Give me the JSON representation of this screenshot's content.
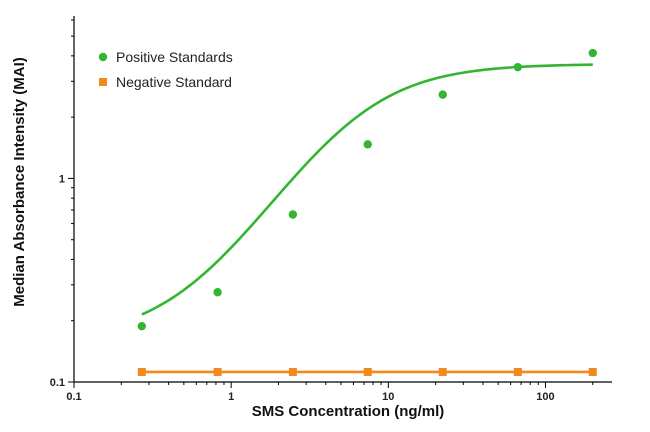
{
  "chart_data": {
    "type": "scatter",
    "xlabel": "SMS Concentration (ng/ml)",
    "ylabel": "Median Absorbance Intensity (MAI)",
    "x_scale": "log",
    "y_scale": "log",
    "xlim": [
      0.1,
      250
    ],
    "ylim": [
      0.1,
      6.0
    ],
    "x_ticks": [
      0.1,
      1,
      10,
      100
    ],
    "x_tick_labels": [
      "0.1",
      "1",
      "10",
      "100"
    ],
    "y_ticks": [
      0.1,
      1
    ],
    "y_tick_labels": [
      "0.1",
      "1"
    ],
    "grid": false,
    "legend_position": "top-left",
    "series": [
      {
        "name": "Positive Standards",
        "color": "#33b533",
        "marker": "circle",
        "x": [
          0.27,
          0.82,
          2.47,
          7.4,
          22.2,
          66.7,
          200
        ],
        "y": [
          0.188,
          0.276,
          0.665,
          1.47,
          2.58,
          3.52,
          4.13
        ],
        "fit_curve": {
          "model": "4PL",
          "bottom": 0.16,
          "top": 3.65,
          "ec50": 5.8,
          "hill": 1.35
        }
      },
      {
        "name": "Negative Standard",
        "color": "#f08a1c",
        "marker": "square",
        "x": [
          0.27,
          0.82,
          2.47,
          7.4,
          22.2,
          66.7,
          200
        ],
        "y": [
          0.112,
          0.112,
          0.112,
          0.112,
          0.112,
          0.112,
          0.112
        ]
      }
    ]
  }
}
